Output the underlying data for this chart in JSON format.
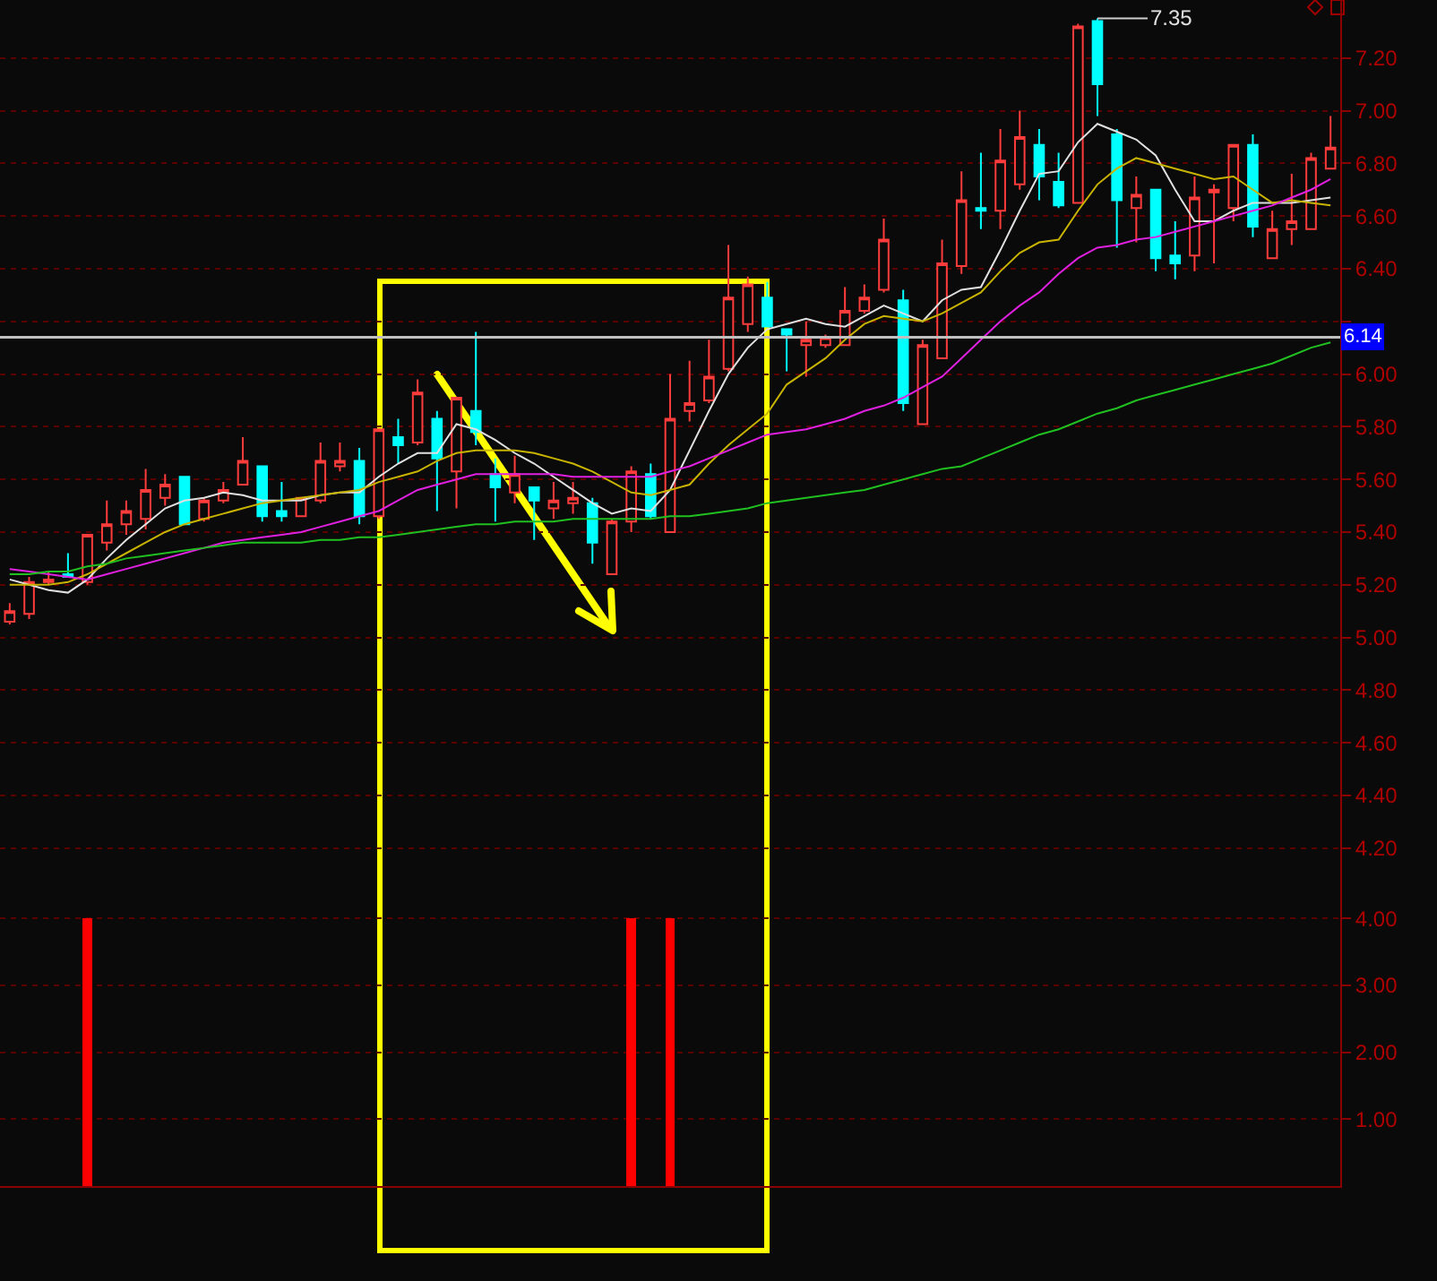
{
  "chart_data": [
    {
      "type": "candlestick",
      "categories": [
        null,
        null,
        null,
        null,
        null,
        null,
        null,
        null,
        null,
        null,
        null,
        null,
        null,
        null,
        null,
        null,
        null,
        null,
        null,
        null,
        null,
        null,
        null,
        null,
        null,
        null,
        null,
        null,
        null,
        null,
        null,
        null,
        null,
        null,
        null,
        null,
        null,
        null,
        null,
        null,
        null,
        null,
        null,
        null,
        null,
        null,
        null,
        null,
        null,
        null,
        null,
        null,
        null,
        null,
        null,
        null,
        null,
        null,
        null,
        null,
        null,
        null,
        null,
        null,
        null,
        null,
        null,
        null,
        null
      ],
      "ohlc": [
        [
          5.06,
          5.13,
          5.05,
          5.1
        ],
        [
          5.09,
          5.23,
          5.07,
          5.21
        ],
        [
          5.21,
          5.25,
          5.2,
          5.22
        ],
        [
          5.24,
          5.32,
          5.23,
          5.23
        ],
        [
          5.21,
          5.39,
          5.2,
          5.39
        ],
        [
          5.36,
          5.52,
          5.33,
          5.43
        ],
        [
          5.43,
          5.52,
          5.39,
          5.48
        ],
        [
          5.45,
          5.64,
          5.41,
          5.56
        ],
        [
          5.53,
          5.62,
          5.5,
          5.58
        ],
        [
          5.61,
          5.61,
          5.43,
          5.43
        ],
        [
          5.45,
          5.53,
          5.44,
          5.52
        ],
        [
          5.52,
          5.59,
          5.51,
          5.56
        ],
        [
          5.58,
          5.76,
          5.58,
          5.67
        ],
        [
          5.65,
          5.65,
          5.44,
          5.46
        ],
        [
          5.48,
          5.59,
          5.44,
          5.46
        ],
        [
          5.46,
          5.53,
          5.46,
          5.53
        ],
        [
          5.52,
          5.74,
          5.51,
          5.67
        ],
        [
          5.65,
          5.74,
          5.63,
          5.67
        ],
        [
          5.67,
          5.72,
          5.43,
          5.46
        ],
        [
          5.46,
          5.79,
          5.45,
          5.79
        ],
        [
          5.76,
          5.83,
          5.66,
          5.73
        ],
        [
          5.74,
          5.98,
          5.73,
          5.93
        ],
        [
          5.83,
          5.86,
          5.48,
          5.68
        ],
        [
          5.63,
          5.91,
          5.49,
          5.91
        ],
        [
          5.86,
          6.16,
          5.73,
          5.78
        ],
        [
          5.62,
          5.68,
          5.44,
          5.57
        ],
        [
          5.55,
          5.69,
          5.51,
          5.62
        ],
        [
          5.57,
          5.57,
          5.37,
          5.52
        ],
        [
          5.49,
          5.59,
          5.45,
          5.52
        ],
        [
          5.51,
          5.59,
          5.47,
          5.53
        ],
        [
          5.51,
          5.53,
          5.28,
          5.36
        ],
        [
          5.24,
          5.45,
          5.24,
          5.44
        ],
        [
          5.44,
          5.65,
          5.4,
          5.63
        ],
        [
          5.62,
          5.66,
          5.45,
          5.46
        ],
        [
          5.4,
          6.0,
          5.4,
          5.83
        ],
        [
          5.86,
          6.05,
          5.82,
          5.89
        ],
        [
          5.9,
          6.13,
          5.89,
          5.99
        ],
        [
          6.02,
          6.49,
          6.01,
          6.29
        ],
        [
          6.19,
          6.37,
          6.16,
          6.34
        ],
        [
          6.29,
          6.35,
          6.18,
          6.18
        ],
        [
          6.17,
          6.17,
          6.01,
          6.15
        ],
        [
          6.11,
          6.2,
          5.99,
          6.13
        ],
        [
          6.11,
          6.15,
          6.1,
          6.14
        ],
        [
          6.11,
          6.33,
          6.11,
          6.24
        ],
        [
          6.24,
          6.34,
          6.23,
          6.29
        ],
        [
          6.32,
          6.59,
          6.31,
          6.51
        ],
        [
          6.28,
          6.32,
          5.86,
          5.89
        ],
        [
          5.81,
          6.13,
          5.81,
          6.11
        ],
        [
          6.06,
          6.51,
          6.06,
          6.42
        ],
        [
          6.41,
          6.77,
          6.38,
          6.66
        ],
        [
          6.63,
          6.84,
          6.55,
          6.62
        ],
        [
          6.62,
          6.93,
          6.55,
          6.81
        ],
        [
          6.72,
          7.0,
          6.7,
          6.9
        ],
        [
          6.87,
          6.93,
          6.66,
          6.75
        ],
        [
          6.73,
          6.84,
          6.63,
          6.64
        ],
        [
          6.65,
          7.33,
          6.65,
          7.32
        ],
        [
          7.34,
          7.35,
          6.98,
          7.1
        ],
        [
          6.91,
          6.93,
          6.48,
          6.66
        ],
        [
          6.63,
          6.75,
          6.5,
          6.68
        ],
        [
          6.7,
          6.7,
          6.39,
          6.44
        ],
        [
          6.45,
          6.58,
          6.36,
          6.42
        ],
        [
          6.45,
          6.75,
          6.39,
          6.67
        ],
        [
          6.69,
          6.72,
          6.42,
          6.7
        ],
        [
          6.63,
          6.87,
          6.58,
          6.87
        ],
        [
          6.87,
          6.91,
          6.52,
          6.56
        ],
        [
          6.44,
          6.62,
          6.44,
          6.55
        ],
        [
          6.55,
          6.76,
          6.49,
          6.58
        ],
        [
          6.55,
          6.84,
          6.55,
          6.82
        ],
        [
          6.78,
          6.98,
          6.78,
          6.86
        ]
      ],
      "series": [
        {
          "type": "line",
          "color": "#e0e0e0",
          "values": [
            5.22,
            5.2,
            5.18,
            5.17,
            5.22,
            5.3,
            5.37,
            5.43,
            5.49,
            5.52,
            5.53,
            5.55,
            5.54,
            5.52,
            5.52,
            5.52,
            5.54,
            5.55,
            5.55,
            5.61,
            5.66,
            5.7,
            5.7,
            5.81,
            5.79,
            5.75,
            5.7,
            5.66,
            5.61,
            5.56,
            5.51,
            5.47,
            5.49,
            5.48,
            5.56,
            5.71,
            5.86,
            6.0,
            6.1,
            6.17,
            6.19,
            6.21,
            6.19,
            6.18,
            6.22,
            6.26,
            6.23,
            6.2,
            6.28,
            6.32,
            6.33,
            6.47,
            6.62,
            6.76,
            6.77,
            6.88,
            6.95,
            6.92,
            6.89,
            6.83,
            6.7,
            6.58,
            6.58,
            6.62,
            6.65,
            6.65,
            6.65,
            6.66,
            6.67
          ]
        },
        {
          "type": "line",
          "color": "#c8b400",
          "values": [
            5.2,
            5.2,
            5.2,
            5.21,
            5.24,
            5.28,
            5.32,
            5.36,
            5.4,
            5.43,
            5.45,
            5.47,
            5.49,
            5.51,
            5.52,
            5.53,
            5.54,
            5.55,
            5.56,
            5.59,
            5.61,
            5.63,
            5.67,
            5.7,
            5.71,
            5.71,
            5.71,
            5.7,
            5.68,
            5.66,
            5.63,
            5.59,
            5.55,
            5.54,
            5.56,
            5.58,
            5.66,
            5.73,
            5.79,
            5.85,
            5.96,
            6.01,
            6.06,
            6.13,
            6.19,
            6.22,
            6.21,
            6.2,
            6.23,
            6.27,
            6.31,
            6.39,
            6.46,
            6.5,
            6.51,
            6.62,
            6.72,
            6.78,
            6.82,
            6.8,
            6.78,
            6.76,
            6.74,
            6.75,
            6.7,
            6.65,
            6.66,
            6.65,
            6.64
          ]
        },
        {
          "type": "line",
          "color": "#e020e0",
          "values": [
            5.26,
            5.25,
            5.24,
            5.23,
            5.22,
            5.24,
            5.26,
            5.28,
            5.3,
            5.32,
            5.34,
            5.36,
            5.37,
            5.38,
            5.39,
            5.4,
            5.42,
            5.44,
            5.46,
            5.48,
            5.52,
            5.56,
            5.58,
            5.6,
            5.62,
            5.62,
            5.62,
            5.62,
            5.62,
            5.61,
            5.61,
            5.61,
            5.61,
            5.61,
            5.63,
            5.65,
            5.68,
            5.71,
            5.74,
            5.77,
            5.78,
            5.79,
            5.81,
            5.83,
            5.86,
            5.88,
            5.91,
            5.95,
            5.99,
            6.06,
            6.13,
            6.2,
            6.26,
            6.31,
            6.38,
            6.44,
            6.48,
            6.49,
            6.51,
            6.52,
            6.54,
            6.56,
            6.58,
            6.6,
            6.62,
            6.64,
            6.67,
            6.7,
            6.74
          ]
        },
        {
          "type": "line",
          "color": "#20c020",
          "values": [
            5.24,
            5.24,
            5.25,
            5.25,
            5.27,
            5.28,
            5.3,
            5.31,
            5.32,
            5.33,
            5.34,
            5.35,
            5.36,
            5.36,
            5.36,
            5.36,
            5.37,
            5.37,
            5.38,
            5.38,
            5.39,
            5.4,
            5.41,
            5.42,
            5.43,
            5.43,
            5.44,
            5.44,
            5.44,
            5.45,
            5.45,
            5.45,
            5.45,
            5.45,
            5.46,
            5.46,
            5.47,
            5.48,
            5.49,
            5.51,
            5.52,
            5.53,
            5.54,
            5.55,
            5.56,
            5.58,
            5.6,
            5.62,
            5.64,
            5.65,
            5.68,
            5.71,
            5.74,
            5.77,
            5.79,
            5.82,
            5.85,
            5.87,
            5.9,
            5.92,
            5.94,
            5.96,
            5.98,
            6.0,
            6.02,
            6.04,
            6.07,
            6.1,
            6.12
          ]
        }
      ],
      "ylim": [
        4.06,
        7.42
      ],
      "yticks": [
        {
          "value": 4.2,
          "label": "4.20"
        },
        {
          "value": 4.4,
          "label": "4.40"
        },
        {
          "value": 4.6,
          "label": "4.60"
        },
        {
          "value": 4.8,
          "label": "4.80"
        },
        {
          "value": 5.0,
          "label": "5.00"
        },
        {
          "value": 5.2,
          "label": "5.20"
        },
        {
          "value": 5.4,
          "label": "5.40"
        },
        {
          "value": 5.6,
          "label": "5.60"
        },
        {
          "value": 5.8,
          "label": "5.80"
        },
        {
          "value": 6.0,
          "label": "6.00"
        },
        {
          "value": 6.2,
          "label": null
        },
        {
          "value": 6.4,
          "label": "6.40"
        },
        {
          "value": 6.6,
          "label": "6.60"
        },
        {
          "value": 6.8,
          "label": "6.80"
        },
        {
          "value": 7.0,
          "label": "7.00"
        },
        {
          "value": 7.2,
          "label": "7.20"
        }
      ],
      "grid": "y",
      "tick_labels": "y",
      "ref_lines": [
        {
          "axis": "y",
          "value": 6.14,
          "label": "6.14",
          "color": "#c0c0c0"
        }
      ],
      "annotations": [
        "7.35"
      ]
    },
    {
      "type": "bar",
      "categories": [
        null,
        null,
        null,
        null,
        null,
        null,
        null,
        null,
        null,
        null,
        null,
        null,
        null,
        null,
        null,
        null,
        null,
        null,
        null,
        null,
        null,
        null,
        null,
        null,
        null,
        null,
        null,
        null,
        null,
        null,
        null,
        null,
        null,
        null,
        null,
        null,
        null,
        null,
        null,
        null,
        null,
        null,
        null,
        null,
        null,
        null,
        null,
        null,
        null,
        null,
        null,
        null,
        null,
        null,
        null,
        null,
        null,
        null,
        null,
        null,
        null,
        null,
        null,
        null,
        null,
        null,
        null,
        null,
        null
      ],
      "values": [
        null,
        null,
        null,
        null,
        4,
        null,
        null,
        null,
        null,
        null,
        null,
        null,
        null,
        null,
        null,
        null,
        null,
        null,
        null,
        null,
        null,
        null,
        null,
        null,
        null,
        null,
        null,
        null,
        null,
        null,
        null,
        null,
        4,
        null,
        4,
        null,
        null,
        null,
        null,
        null,
        null,
        null,
        null,
        null,
        null,
        null,
        null,
        null,
        null,
        null,
        null,
        null,
        null,
        null,
        null,
        null,
        null,
        null,
        null,
        null,
        null,
        null,
        null,
        null,
        null,
        null,
        null,
        null,
        null
      ],
      "color": "#ff0000",
      "ylim": [
        0,
        4.5
      ],
      "yticks": [
        {
          "value": 1,
          "label": "1.00"
        },
        {
          "value": 2,
          "label": "2.00"
        },
        {
          "value": 3,
          "label": "3.00"
        },
        {
          "value": 4,
          "label": "4.00"
        }
      ],
      "grid": "y",
      "tick_labels": "y"
    }
  ]
}
